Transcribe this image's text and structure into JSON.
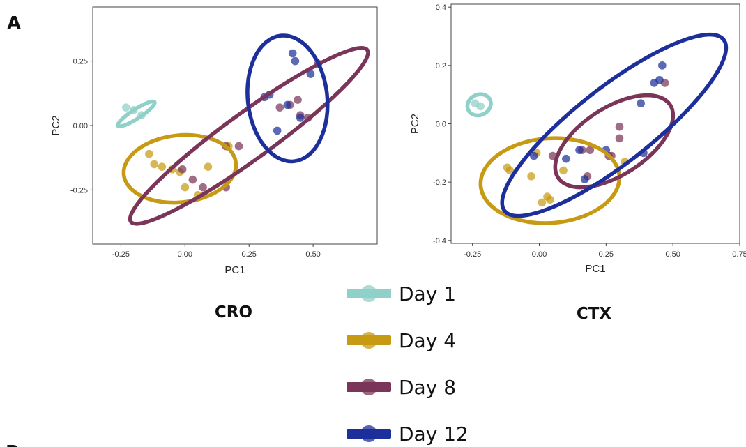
{
  "figure": {
    "panel_letter": "A",
    "next_panel_letter": "B"
  },
  "colors": {
    "Day 1": "#8fd0c9",
    "Day 4": "#c79a14",
    "Day 8": "#7a3558",
    "Day 12": "#1c2f9a"
  },
  "legend": {
    "items": [
      "Day 1",
      "Day 4",
      "Day 8",
      "Day 12"
    ]
  },
  "chart_data": [
    {
      "type": "scatter",
      "title": "CRO",
      "xlabel": "PC1",
      "ylabel": "PC2",
      "xlim": [
        -0.36,
        0.75
      ],
      "ylim": [
        -0.46,
        0.46
      ],
      "xticks": [
        -0.25,
        0.0,
        0.25,
        0.5
      ],
      "xtick_labels": [
        "-0.25",
        "0.00",
        "0.25",
        "0.50"
      ],
      "yticks": [
        -0.25,
        0.0,
        0.25
      ],
      "ytick_labels": [
        "-0.25",
        "0.00",
        "0.25"
      ],
      "series": [
        {
          "name": "Day 1",
          "points": [
            [
              -0.23,
              0.07
            ],
            [
              -0.2,
              0.06
            ],
            [
              -0.17,
              0.04
            ]
          ],
          "ellipse": {
            "cx": -0.19,
            "cy": 0.045,
            "rx": 0.085,
            "ry": 0.018,
            "angle": -33
          }
        },
        {
          "name": "Day 4",
          "points": [
            [
              -0.14,
              -0.11
            ],
            [
              -0.12,
              -0.15
            ],
            [
              -0.09,
              -0.16
            ],
            [
              -0.05,
              -0.17
            ],
            [
              -0.02,
              -0.18
            ],
            [
              0.0,
              -0.24
            ],
            [
              0.05,
              -0.27
            ],
            [
              0.09,
              -0.16
            ],
            [
              0.17,
              -0.08
            ]
          ],
          "ellipse": {
            "cx": -0.02,
            "cy": -0.168,
            "rx": 0.22,
            "ry": 0.13,
            "angle": -6
          }
        },
        {
          "name": "Day 8",
          "points": [
            [
              -0.01,
              -0.17
            ],
            [
              0.03,
              -0.21
            ],
            [
              0.07,
              -0.24
            ],
            [
              0.16,
              -0.24
            ],
            [
              0.16,
              -0.08
            ],
            [
              0.21,
              -0.08
            ],
            [
              0.37,
              0.07
            ],
            [
              0.41,
              0.08
            ],
            [
              0.44,
              0.1
            ],
            [
              0.45,
              0.04
            ],
            [
              0.48,
              0.03
            ],
            [
              0.52,
              0.24
            ]
          ],
          "ellipse": {
            "cx": 0.25,
            "cy": -0.04,
            "rx": 0.57,
            "ry": 0.09,
            "angle": -36
          }
        },
        {
          "name": "Day 12",
          "points": [
            [
              0.31,
              0.11
            ],
            [
              0.33,
              0.12
            ],
            [
              0.36,
              -0.02
            ],
            [
              0.4,
              0.08
            ],
            [
              0.42,
              0.28
            ],
            [
              0.43,
              0.25
            ],
            [
              0.45,
              0.03
            ],
            [
              0.49,
              0.2
            ]
          ],
          "ellipse": {
            "cx": 0.4,
            "cy": 0.105,
            "rx": 0.155,
            "ry": 0.245,
            "angle": -6
          }
        }
      ]
    },
    {
      "type": "scatter",
      "title": "CTX",
      "xlabel": "PC1",
      "ylabel": "PC2",
      "xlim": [
        -0.33,
        0.75
      ],
      "ylim": [
        -0.41,
        0.41
      ],
      "xticks": [
        -0.25,
        0.0,
        0.25,
        0.5,
        0.75
      ],
      "xtick_labels": [
        "-0.25",
        "0.00",
        "0.25",
        "0.50",
        "0.75"
      ],
      "yticks": [
        -0.4,
        -0.2,
        0.0,
        0.2,
        0.4
      ],
      "ytick_labels": [
        "-0.4",
        "-0.2",
        "0.0",
        "0.2",
        "0.4"
      ],
      "series": [
        {
          "name": "Day 1",
          "points": [
            [
              -0.24,
              0.07
            ],
            [
              -0.22,
              0.06
            ]
          ],
          "ellipse": {
            "cx": -0.225,
            "cy": 0.065,
            "rx": 0.045,
            "ry": 0.035,
            "angle": -25
          }
        },
        {
          "name": "Day 4",
          "points": [
            [
              -0.12,
              -0.15
            ],
            [
              -0.11,
              -0.16
            ],
            [
              -0.03,
              -0.18
            ],
            [
              -0.01,
              -0.1
            ],
            [
              0.01,
              -0.27
            ],
            [
              0.03,
              -0.25
            ],
            [
              0.04,
              -0.26
            ],
            [
              0.09,
              -0.16
            ],
            [
              0.32,
              -0.13
            ]
          ],
          "ellipse": {
            "cx": 0.04,
            "cy": -0.195,
            "rx": 0.26,
            "ry": 0.145,
            "angle": -4
          }
        },
        {
          "name": "Day 8",
          "points": [
            [
              0.05,
              -0.11
            ],
            [
              0.16,
              -0.09
            ],
            [
              0.18,
              -0.18
            ],
            [
              0.19,
              -0.09
            ],
            [
              0.26,
              -0.11
            ],
            [
              0.27,
              -0.11
            ],
            [
              0.3,
              -0.05
            ],
            [
              0.3,
              -0.01
            ],
            [
              0.47,
              0.14
            ]
          ],
          "ellipse": {
            "cx": 0.28,
            "cy": -0.06,
            "rx": 0.25,
            "ry": 0.115,
            "angle": -33
          }
        },
        {
          "name": "Day 12",
          "points": [
            [
              -0.02,
              -0.11
            ],
            [
              0.1,
              -0.12
            ],
            [
              0.15,
              -0.09
            ],
            [
              0.17,
              -0.19
            ],
            [
              0.25,
              -0.09
            ],
            [
              0.38,
              0.07
            ],
            [
              0.39,
              -0.1
            ],
            [
              0.43,
              0.14
            ],
            [
              0.45,
              0.15
            ],
            [
              0.46,
              0.2
            ]
          ],
          "ellipse": {
            "cx": 0.28,
            "cy": -0.005,
            "rx": 0.52,
            "ry": 0.13,
            "angle": -38
          }
        }
      ]
    }
  ]
}
